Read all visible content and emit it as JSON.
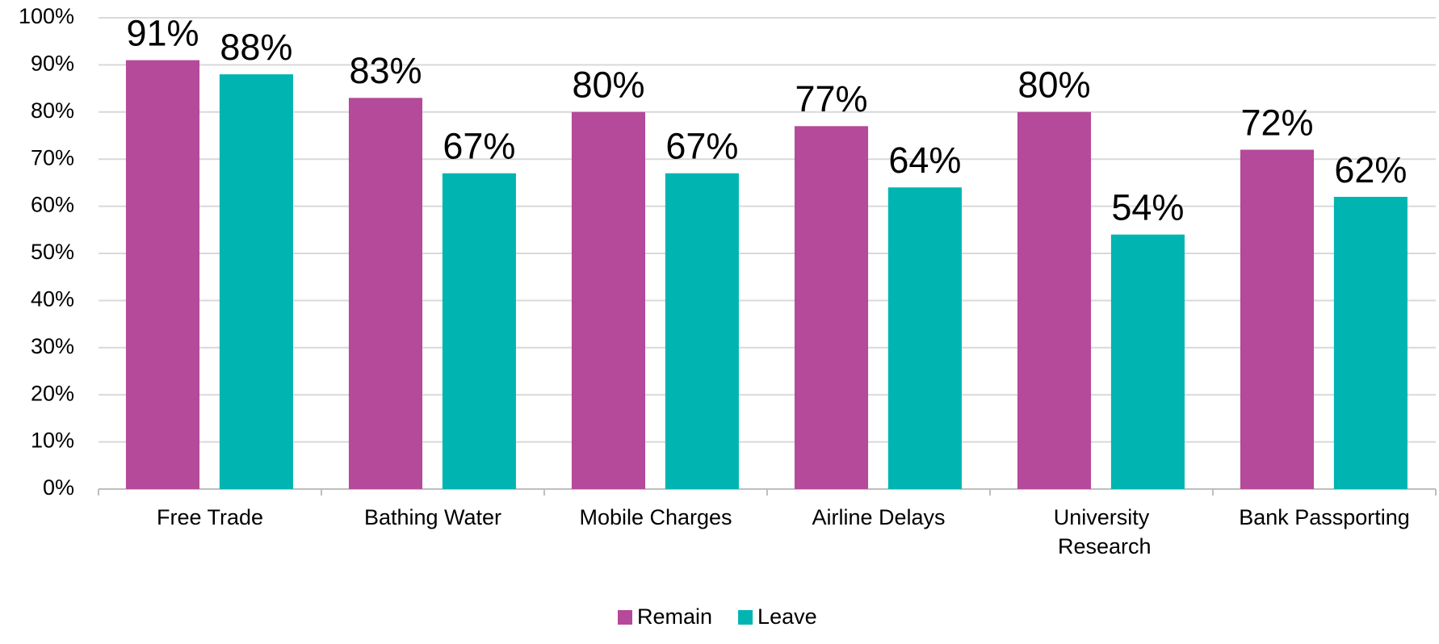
{
  "chart_data": {
    "type": "bar",
    "categories": [
      "Free Trade",
      "Bathing Water",
      "Mobile Charges",
      "Airline Delays",
      "University Research",
      "Bank Passporting"
    ],
    "series": [
      {
        "name": "Remain",
        "color": "#b5499a",
        "values": [
          91,
          83,
          80,
          77,
          80,
          72
        ],
        "value_labels": [
          "91%",
          "83%",
          "80%",
          "77%",
          "80%",
          "72%"
        ]
      },
      {
        "name": "Leave",
        "color": "#00b5b1",
        "values": [
          88,
          67,
          67,
          64,
          54,
          62
        ],
        "value_labels": [
          "88%",
          "67%",
          "67%",
          "64%",
          "54%",
          "62%"
        ]
      }
    ],
    "ylim": [
      0,
      100
    ],
    "yticks": [
      {
        "value": 0,
        "label": "0%"
      },
      {
        "value": 10,
        "label": "10%"
      },
      {
        "value": 20,
        "label": "20%"
      },
      {
        "value": 30,
        "label": "30%"
      },
      {
        "value": 40,
        "label": "40%"
      },
      {
        "value": 50,
        "label": "50%"
      },
      {
        "value": 60,
        "label": "60%"
      },
      {
        "value": 70,
        "label": "70%"
      },
      {
        "value": 80,
        "label": "80%"
      },
      {
        "value": 90,
        "label": "90%"
      },
      {
        "value": 100,
        "label": "100%"
      }
    ],
    "grid": true,
    "legend": "bottom"
  }
}
